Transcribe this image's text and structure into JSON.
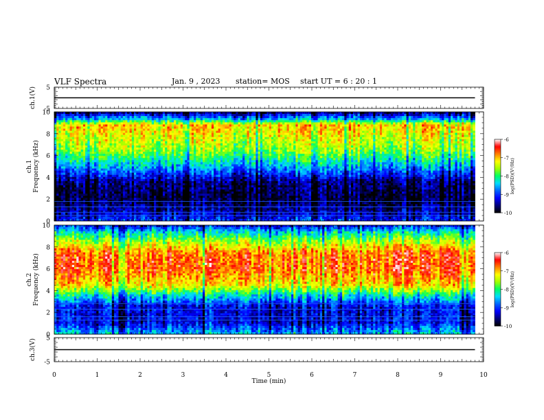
{
  "header": {
    "title": "VLF Spectra",
    "date": "Jan. 9 , 2023",
    "station": "station= MOS",
    "start": "start UT =  6 : 20 : 1"
  },
  "colors": {
    "palette": [
      "#000000",
      "#00007a",
      "#0000ff",
      "#0064ff",
      "#00dcff",
      "#00ff64",
      "#a0ff00",
      "#ffff00",
      "#ff8000",
      "#ff0000",
      "#ffffff"
    ],
    "trace": "#000000"
  },
  "chart_data": [
    {
      "type": "line",
      "name": "voltage-ch1",
      "ylabel": "ch.1(V)",
      "ylim": [
        -5,
        5
      ],
      "yticks": [
        "5",
        "-5"
      ],
      "xlim": [
        0,
        10
      ],
      "series": [
        {
          "x": [
            0,
            9.8
          ],
          "values": [
            0,
            0
          ]
        }
      ]
    },
    {
      "type": "heatmap",
      "name": "spectrogram-ch1",
      "ylabel": "ch.1\nFrequency (kHz)",
      "ylim": [
        0,
        10
      ],
      "yticks": [
        "10",
        "8",
        "6",
        "4",
        "2",
        "0"
      ],
      "xlim": [
        0,
        10
      ],
      "data_end_min": 9.8,
      "colorbar": {
        "label": "log(PSD)(V²/Hz)",
        "range": [
          -10,
          -6
        ],
        "ticks": [
          "-6",
          "-7",
          "-8",
          "-9",
          "-10"
        ]
      },
      "profile": [
        {
          "freq_khz": 0.0,
          "log_psd": -9.0
        },
        {
          "freq_khz": 0.5,
          "log_psd": -9.3
        },
        {
          "freq_khz": 2.0,
          "log_psd": -9.8
        },
        {
          "freq_khz": 3.5,
          "log_psd": -9.6
        },
        {
          "freq_khz": 5.0,
          "log_psd": -8.5
        },
        {
          "freq_khz": 6.5,
          "log_psd": -7.6
        },
        {
          "freq_khz": 8.0,
          "log_psd": -7.2
        },
        {
          "freq_khz": 8.8,
          "log_psd": -7.0
        },
        {
          "freq_khz": 9.3,
          "log_psd": -8.4
        },
        {
          "freq_khz": 10.0,
          "log_psd": -9.7
        }
      ],
      "lines_khz": [
        0.5,
        0.8,
        1.3,
        1.8
      ]
    },
    {
      "type": "heatmap",
      "name": "spectrogram-ch2",
      "ylabel": "ch.2\nFrequency (kHz)",
      "ylim": [
        0,
        10
      ],
      "yticks": [
        "10",
        "8",
        "6",
        "4",
        "2",
        "0"
      ],
      "xlim": [
        0,
        10
      ],
      "data_end_min": 9.8,
      "colorbar": {
        "label": "log(PSD)(V²/Hz)",
        "range": [
          -10,
          -6
        ],
        "ticks": [
          "-6",
          "-7",
          "-8",
          "-9",
          "-10"
        ]
      },
      "profile": [
        {
          "freq_khz": 0.0,
          "log_psd": -8.4
        },
        {
          "freq_khz": 1.0,
          "log_psd": -9.2
        },
        {
          "freq_khz": 2.5,
          "log_psd": -9.2
        },
        {
          "freq_khz": 3.5,
          "log_psd": -8.3
        },
        {
          "freq_khz": 4.5,
          "log_psd": -7.1
        },
        {
          "freq_khz": 6.0,
          "log_psd": -6.6
        },
        {
          "freq_khz": 7.5,
          "log_psd": -6.7
        },
        {
          "freq_khz": 8.5,
          "log_psd": -7.5
        },
        {
          "freq_khz": 9.3,
          "log_psd": -8.2
        },
        {
          "freq_khz": 10.0,
          "log_psd": -9.2
        }
      ],
      "lines_khz": [
        1.3,
        1.6,
        2.3,
        2.8
      ]
    },
    {
      "type": "line",
      "name": "voltage-ch3",
      "ylabel": "ch.3(V)",
      "ylim": [
        -5,
        5
      ],
      "yticks": [
        "5",
        "-5"
      ],
      "xlim": [
        0,
        10
      ],
      "xlabel": "Time (min)",
      "xticks": [
        "0",
        "1",
        "2",
        "3",
        "4",
        "5",
        "6",
        "7",
        "8",
        "9",
        "10"
      ],
      "series": [
        {
          "x": [
            0,
            9.8
          ],
          "values": [
            0,
            0
          ]
        }
      ]
    }
  ]
}
